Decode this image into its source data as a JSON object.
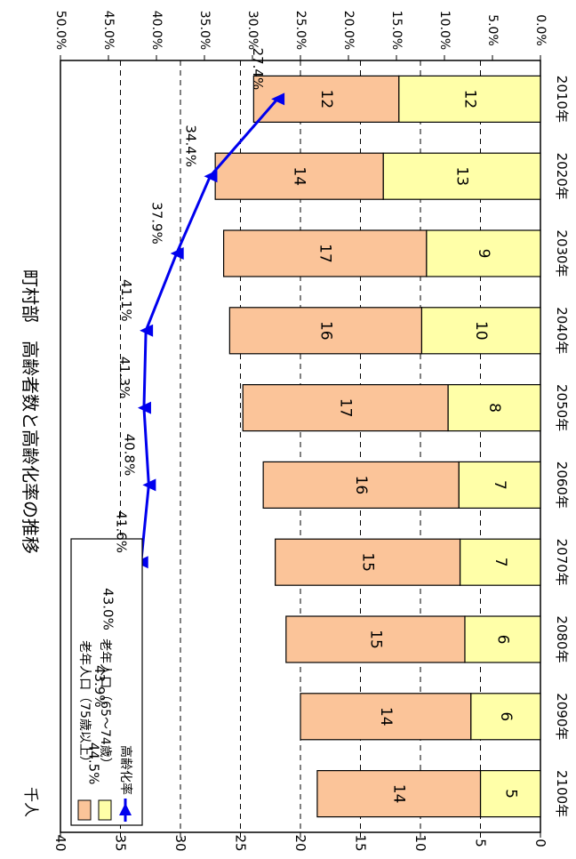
{
  "chart_data": {
    "type": "bar",
    "orientation": "rotated-90-clockwise",
    "title": "町村部　高齢者数と高齢化率の推移",
    "left_axis_unit": "千人",
    "categories": [
      "2010年",
      "2020年",
      "2030年",
      "2040年",
      "2050年",
      "2060年",
      "2070年",
      "2080年",
      "2090年",
      "2100年"
    ],
    "series": [
      {
        "name": "老年人口（75歳以上）",
        "kind": "stacked-bar-top",
        "color": "#FBC499",
        "values": [
          12,
          14,
          17,
          16,
          17,
          16,
          15,
          15,
          14,
          14
        ]
      },
      {
        "name": "老年人口（65～74歳）",
        "kind": "stacked-bar-bottom",
        "color": "#FFFFA8",
        "values": [
          12,
          13,
          9,
          10,
          8,
          7,
          7,
          6,
          6,
          5
        ]
      },
      {
        "name": "高齢化率",
        "kind": "line",
        "axis": "right",
        "color": "#0000EE",
        "values": [
          27.4,
          34.4,
          37.9,
          41.1,
          41.3,
          40.8,
          41.6,
          43.0,
          43.9,
          44.5
        ],
        "labels": [
          "27.4%",
          "34.4%",
          "37.9%",
          "41.1%",
          "41.3%",
          "40.8%",
          "41.6%",
          "43.0%",
          "43.9%",
          "44.5%"
        ]
      }
    ],
    "stack_totals": [
      23.9,
      27.1,
      26.4,
      25.9,
      24.8,
      23.1,
      22.1,
      21.2,
      20.0,
      18.6
    ],
    "bottom_values": [
      11.8,
      13.1,
      9.5,
      9.9,
      7.7,
      6.8,
      6.7,
      6.3,
      5.8,
      5.0
    ],
    "left_axis": {
      "ticks": [
        "0",
        "5",
        "10",
        "15",
        "20",
        "25",
        "30",
        "35",
        "40"
      ],
      "ylim": [
        0,
        40
      ]
    },
    "right_axis": {
      "ticks": [
        "0.0%",
        "5.0%",
        "10.0%",
        "15.0%",
        "20.0%",
        "25.0%",
        "30.0%",
        "35.0%",
        "40.0%",
        "45.0%",
        "50.0%"
      ],
      "ylim": [
        0,
        50
      ]
    },
    "grid": "dashed horizontal",
    "legend_position": "top-left"
  }
}
